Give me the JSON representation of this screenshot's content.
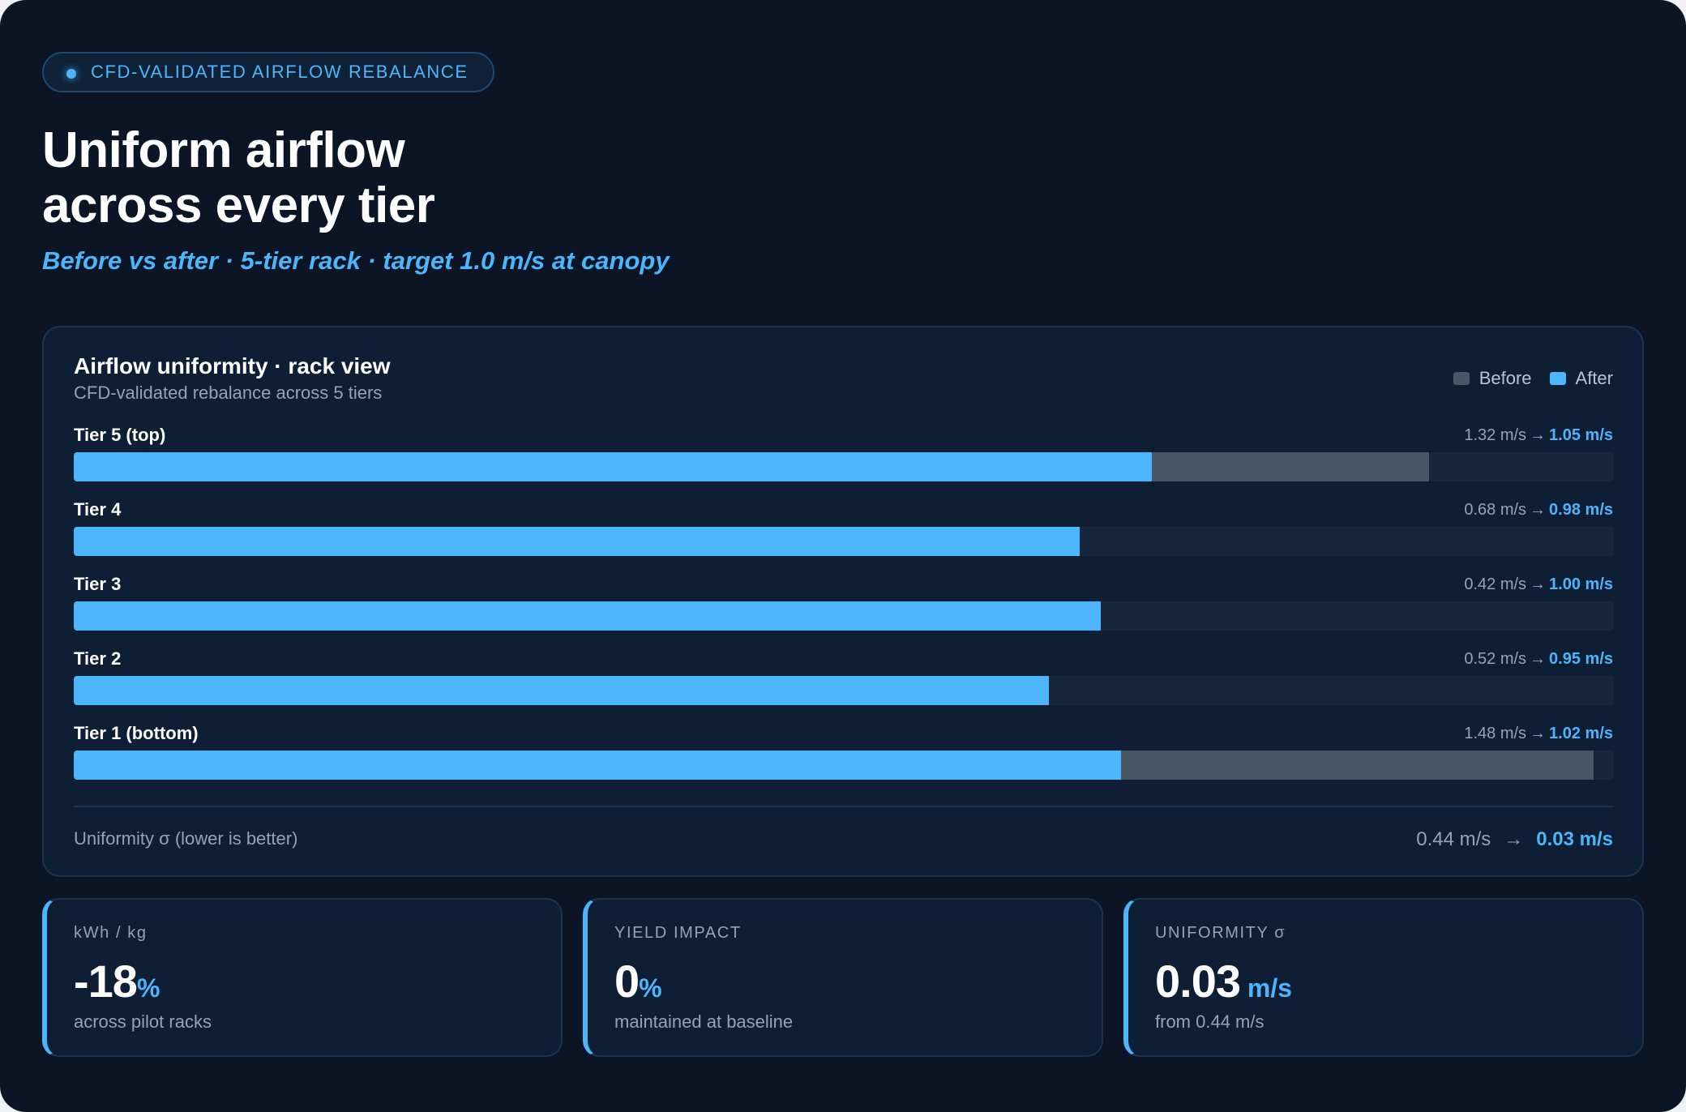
{
  "badge": "CFD-VALIDATED AIRFLOW REBALANCE",
  "headline": {
    "line1": "Uniform airflow",
    "line2": "across every tier"
  },
  "subhead": "Before vs after · 5-tier rack · target 1.0 m/s at canopy",
  "colors": {
    "before": "#485668",
    "after": "#4db5fa"
  },
  "chart_data": {
    "type": "bar",
    "orientation": "horizontal",
    "title": "Airflow uniformity · rack view",
    "subtitle": "CFD-validated rebalance across 5 tiers",
    "legend": [
      "Before",
      "After"
    ],
    "legend_position": "top-right",
    "unit": "m/s",
    "xlim": [
      0,
      1.5
    ],
    "categories": [
      "Tier 5 (top)",
      "Tier 4",
      "Tier 3",
      "Tier 2",
      "Tier 1 (bottom)"
    ],
    "series": [
      {
        "name": "Before",
        "values": [
          1.32,
          0.68,
          0.42,
          0.52,
          1.48
        ]
      },
      {
        "name": "After",
        "values": [
          1.05,
          0.98,
          1.0,
          0.95,
          1.02
        ]
      }
    ],
    "tier_labels": [
      {
        "before": "1.32 m/s",
        "after": "1.05 m/s"
      },
      {
        "before": "0.68 m/s",
        "after": "0.98 m/s"
      },
      {
        "before": "0.42 m/s",
        "after": "1.00 m/s"
      },
      {
        "before": "0.52 m/s",
        "after": "0.95 m/s"
      },
      {
        "before": "1.48 m/s",
        "after": "1.02 m/s"
      }
    ],
    "footer": {
      "label": "Uniformity σ (lower is better)",
      "before": "0.44 m/s",
      "after": "0.03 m/s"
    }
  },
  "kpis": [
    {
      "label": "kWh / kg",
      "value": "-18",
      "unit": "%",
      "note": "across pilot racks"
    },
    {
      "label": "YIELD IMPACT",
      "value": "0",
      "unit": "%",
      "note": "maintained at baseline"
    },
    {
      "label": "UNIFORMITY σ",
      "value": "0.03",
      "unit": " m/s",
      "note": "from 0.44 m/s"
    }
  ]
}
